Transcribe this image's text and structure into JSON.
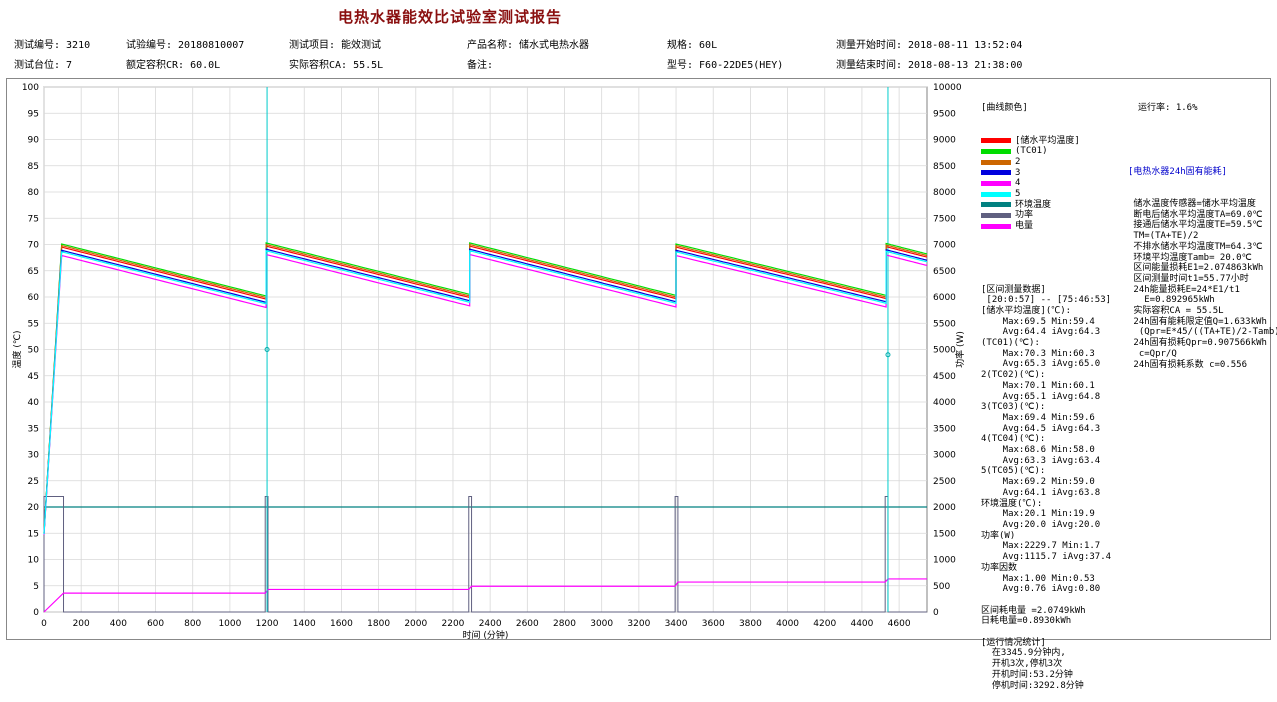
{
  "title": "电热水器能效比试验室测试报告",
  "header": {
    "row1": [
      "测试编号: 3210",
      "试验编号: 20180810007",
      "测试项目: 能效测试",
      "产品名称: 储水式电热水器",
      "规格: 60L",
      "测量开始时间: 2018-08-11 13:52:04"
    ],
    "row2": [
      "测试台位: 7",
      "额定容积CR: 60.0L",
      "实际容积CA: 55.5L",
      "备注:",
      "型号: F60-22DE5(HEY)",
      "测量结束时间: 2018-08-13 21:38:00"
    ]
  },
  "legend": {
    "title": "[曲线颜色]",
    "items": [
      {
        "label": "[储水平均温度]",
        "color": "#ff0000"
      },
      {
        "label": "(TC01)",
        "color": "#00dd00"
      },
      {
        "label": "2",
        "color": "#cc6600"
      },
      {
        "label": "3",
        "color": "#0000dd"
      },
      {
        "label": "4",
        "color": "#ff00ff"
      },
      {
        "label": "5",
        "color": "#00ffff"
      },
      {
        "label": "环境温度",
        "color": "#008080"
      },
      {
        "label": "功率",
        "color": "#606080"
      },
      {
        "label": "电量",
        "color": "#ff00ff"
      }
    ]
  },
  "interval_stats": [
    "[区间测量数据]",
    " [20:0:57] -- [75:46:53]",
    "[储水平均温度](℃):",
    "    Max:69.5 Min:59.4",
    "    Avg:64.4 iAvg:64.3",
    "(TC01)(℃):",
    "    Max:70.3 Min:60.3",
    "    Avg:65.3 iAvg:65.0",
    "2(TC02)(℃):",
    "    Max:70.1 Min:60.1",
    "    Avg:65.1 iAvg:64.8",
    "3(TC03)(℃):",
    "    Max:69.4 Min:59.6",
    "    Avg:64.5 iAvg:64.3",
    "4(TC04)(℃):",
    "    Max:68.6 Min:58.0",
    "    Avg:63.3 iAvg:63.4",
    "5(TC05)(℃):",
    "    Max:69.2 Min:59.0",
    "    Avg:64.1 iAvg:63.8",
    "环境温度(℃):",
    "    Max:20.1 Min:19.9",
    "    Avg:20.0 iAvg:20.0",
    "功率(W)",
    "    Max:2229.7 Min:1.7",
    "    Avg:1115.7 iAvg:37.4",
    "功率因数",
    "    Max:1.00 Min:0.53",
    "    Avg:0.76 iAvg:0.80",
    "",
    "区间耗电量 =2.0749kWh",
    "日耗电量=0.8930kWh",
    "",
    "[运行情况统计]",
    "  在3345.9分钟内,",
    "  开机3次,停机3次",
    "  开机时间:53.2分钟",
    "  停机时间:3292.8分钟"
  ],
  "energy": {
    "run_rate": "运行率: 1.6%",
    "heading": "[电热水器24h固有能耗]",
    "lines": [
      " 储水温度传感器=储水平均温度",
      " 断电后储水平均温度TA=69.0℃",
      " 接通后储水平均温度TE=59.5℃",
      " TM=(TA+TE)/2",
      " 不排水储水平均温度TM=64.3℃",
      " 环境平均温度Tamb= 20.0℃",
      " 区间能量损耗E1=2.074863kWh",
      " 区间测量时间t1=55.77小时",
      " 24h能量损耗E=24*E1/t1",
      "   E=0.892965kWh",
      " 实际容积CA = 55.5L",
      " 24h固有能耗限定值Q=1.633kWh",
      "  (Qpr=E*45/((TA+TE)/2-Tamb))",
      " 24h固有损耗Qpr=0.907566kWh",
      "  c=Qpr/Q",
      " 24h固有损耗系数 c=0.556"
    ]
  },
  "chart_data": {
    "type": "line",
    "xlabel": "时间 (分钟)",
    "ylabel": "温度 (℃)",
    "y2label": "功率 (W)",
    "xlim": [
      0,
      4750
    ],
    "ylim": [
      0,
      100
    ],
    "y2lim": [
      0,
      10000
    ],
    "xticks": [
      0,
      200,
      400,
      600,
      800,
      1000,
      1200,
      1400,
      1600,
      1800,
      2000,
      2200,
      2400,
      2600,
      2800,
      3000,
      3200,
      3400,
      3600,
      3800,
      4000,
      4200,
      4400,
      4600
    ],
    "yticks": [
      0,
      5,
      10,
      15,
      20,
      25,
      30,
      35,
      40,
      45,
      50,
      55,
      60,
      65,
      70,
      75,
      80,
      85,
      90,
      95,
      100
    ],
    "y2ticks": [
      0,
      500,
      1000,
      1500,
      2000,
      2500,
      3000,
      3500,
      4000,
      4500,
      5000,
      5500,
      6000,
      6500,
      7000,
      7500,
      8000,
      8500,
      9000,
      9500,
      10000
    ],
    "grid": true,
    "series": [
      {
        "name": "储水平均温度",
        "color": "#ff0000",
        "offset": 0.0
      },
      {
        "name": "TC01",
        "color": "#00dd00",
        "offset": 0.6
      },
      {
        "name": "2",
        "color": "#cc6600",
        "offset": 0.3
      },
      {
        "name": "3",
        "color": "#0000dd",
        "offset": -0.6
      },
      {
        "name": "4",
        "color": "#ff00ff",
        "offset": -1.6
      },
      {
        "name": "5",
        "color": "#00ffff",
        "offset": -0.9
      }
    ],
    "cycles": [
      {
        "x_start": 95,
        "x_end": 1195,
        "y_start": 69.5,
        "y_end": 59.6
      },
      {
        "x_start": 1195,
        "x_end": 2290,
        "y_start": 69.7,
        "y_end": 59.9
      },
      {
        "x_start": 2290,
        "x_end": 3400,
        "y_start": 69.7,
        "y_end": 59.7
      },
      {
        "x_start": 3400,
        "x_end": 4530,
        "y_start": 69.5,
        "y_end": 59.7
      },
      {
        "x_start": 4530,
        "x_end": 4750,
        "y_start": 69.6,
        "y_end": 67.6
      }
    ],
    "initial_heat": {
      "x": [
        0,
        95
      ],
      "y": [
        15,
        69.5
      ]
    },
    "ambient": {
      "name": "环境温度",
      "value": 20.0,
      "color": "#008080"
    },
    "power": {
      "name": "功率",
      "color": "#606080",
      "on_value": 2200,
      "on_intervals": [
        [
          0,
          105
        ],
        [
          1190,
          1205
        ],
        [
          2285,
          2300
        ],
        [
          3395,
          3410
        ],
        [
          4525,
          4540
        ]
      ]
    },
    "energy_curve": {
      "name": "电量",
      "color": "#ff00ff",
      "points": [
        [
          0,
          0
        ],
        [
          105,
          3.6
        ],
        [
          1190,
          3.6
        ],
        [
          1205,
          4.3
        ],
        [
          2285,
          4.3
        ],
        [
          2300,
          4.9
        ],
        [
          3395,
          4.9
        ],
        [
          3410,
          5.7
        ],
        [
          4525,
          5.7
        ],
        [
          4540,
          6.3
        ],
        [
          4750,
          6.3
        ]
      ]
    },
    "markers": [
      {
        "x": 1200,
        "y": 50
      },
      {
        "x": 4540,
        "y": 49
      }
    ]
  }
}
